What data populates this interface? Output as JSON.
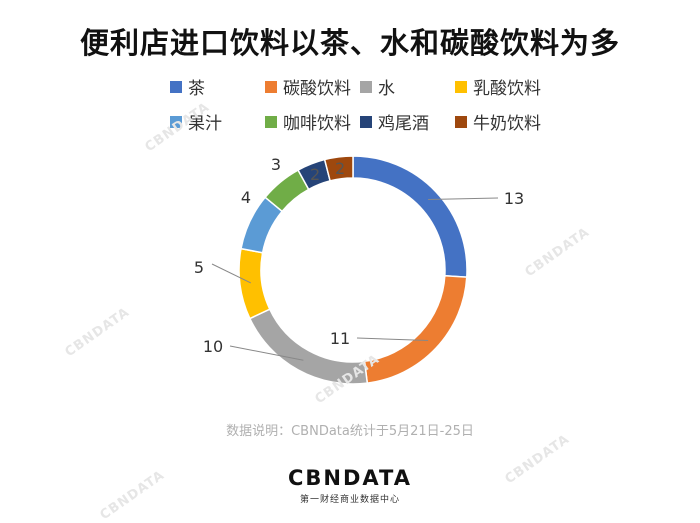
{
  "title": "便利店进口饮料以茶、水和碳酸饮料为多",
  "note": "数据说明：CBNData统计于5月21日-25日",
  "brand": {
    "logo": "CBNDATA",
    "subtitle": "第一财经商业数据中心"
  },
  "watermark": "CBNDATA",
  "chart_data": {
    "type": "pie",
    "variant": "donut",
    "title": "便利店进口饮料以茶、水和碳酸饮料为多",
    "legend_position": "top",
    "categories": [
      "茶",
      "碳酸饮料",
      "水",
      "乳酸饮料",
      "果汁",
      "咖啡饮料",
      "鸡尾酒",
      "牛奶饮料"
    ],
    "values": [
      13,
      11,
      10,
      5,
      4,
      3,
      2,
      2
    ],
    "colors": [
      "#4472C4",
      "#ED7D31",
      "#A5A5A5",
      "#FFC000",
      "#5B9BD5",
      "#70AD47",
      "#264478",
      "#9E480E"
    ]
  }
}
